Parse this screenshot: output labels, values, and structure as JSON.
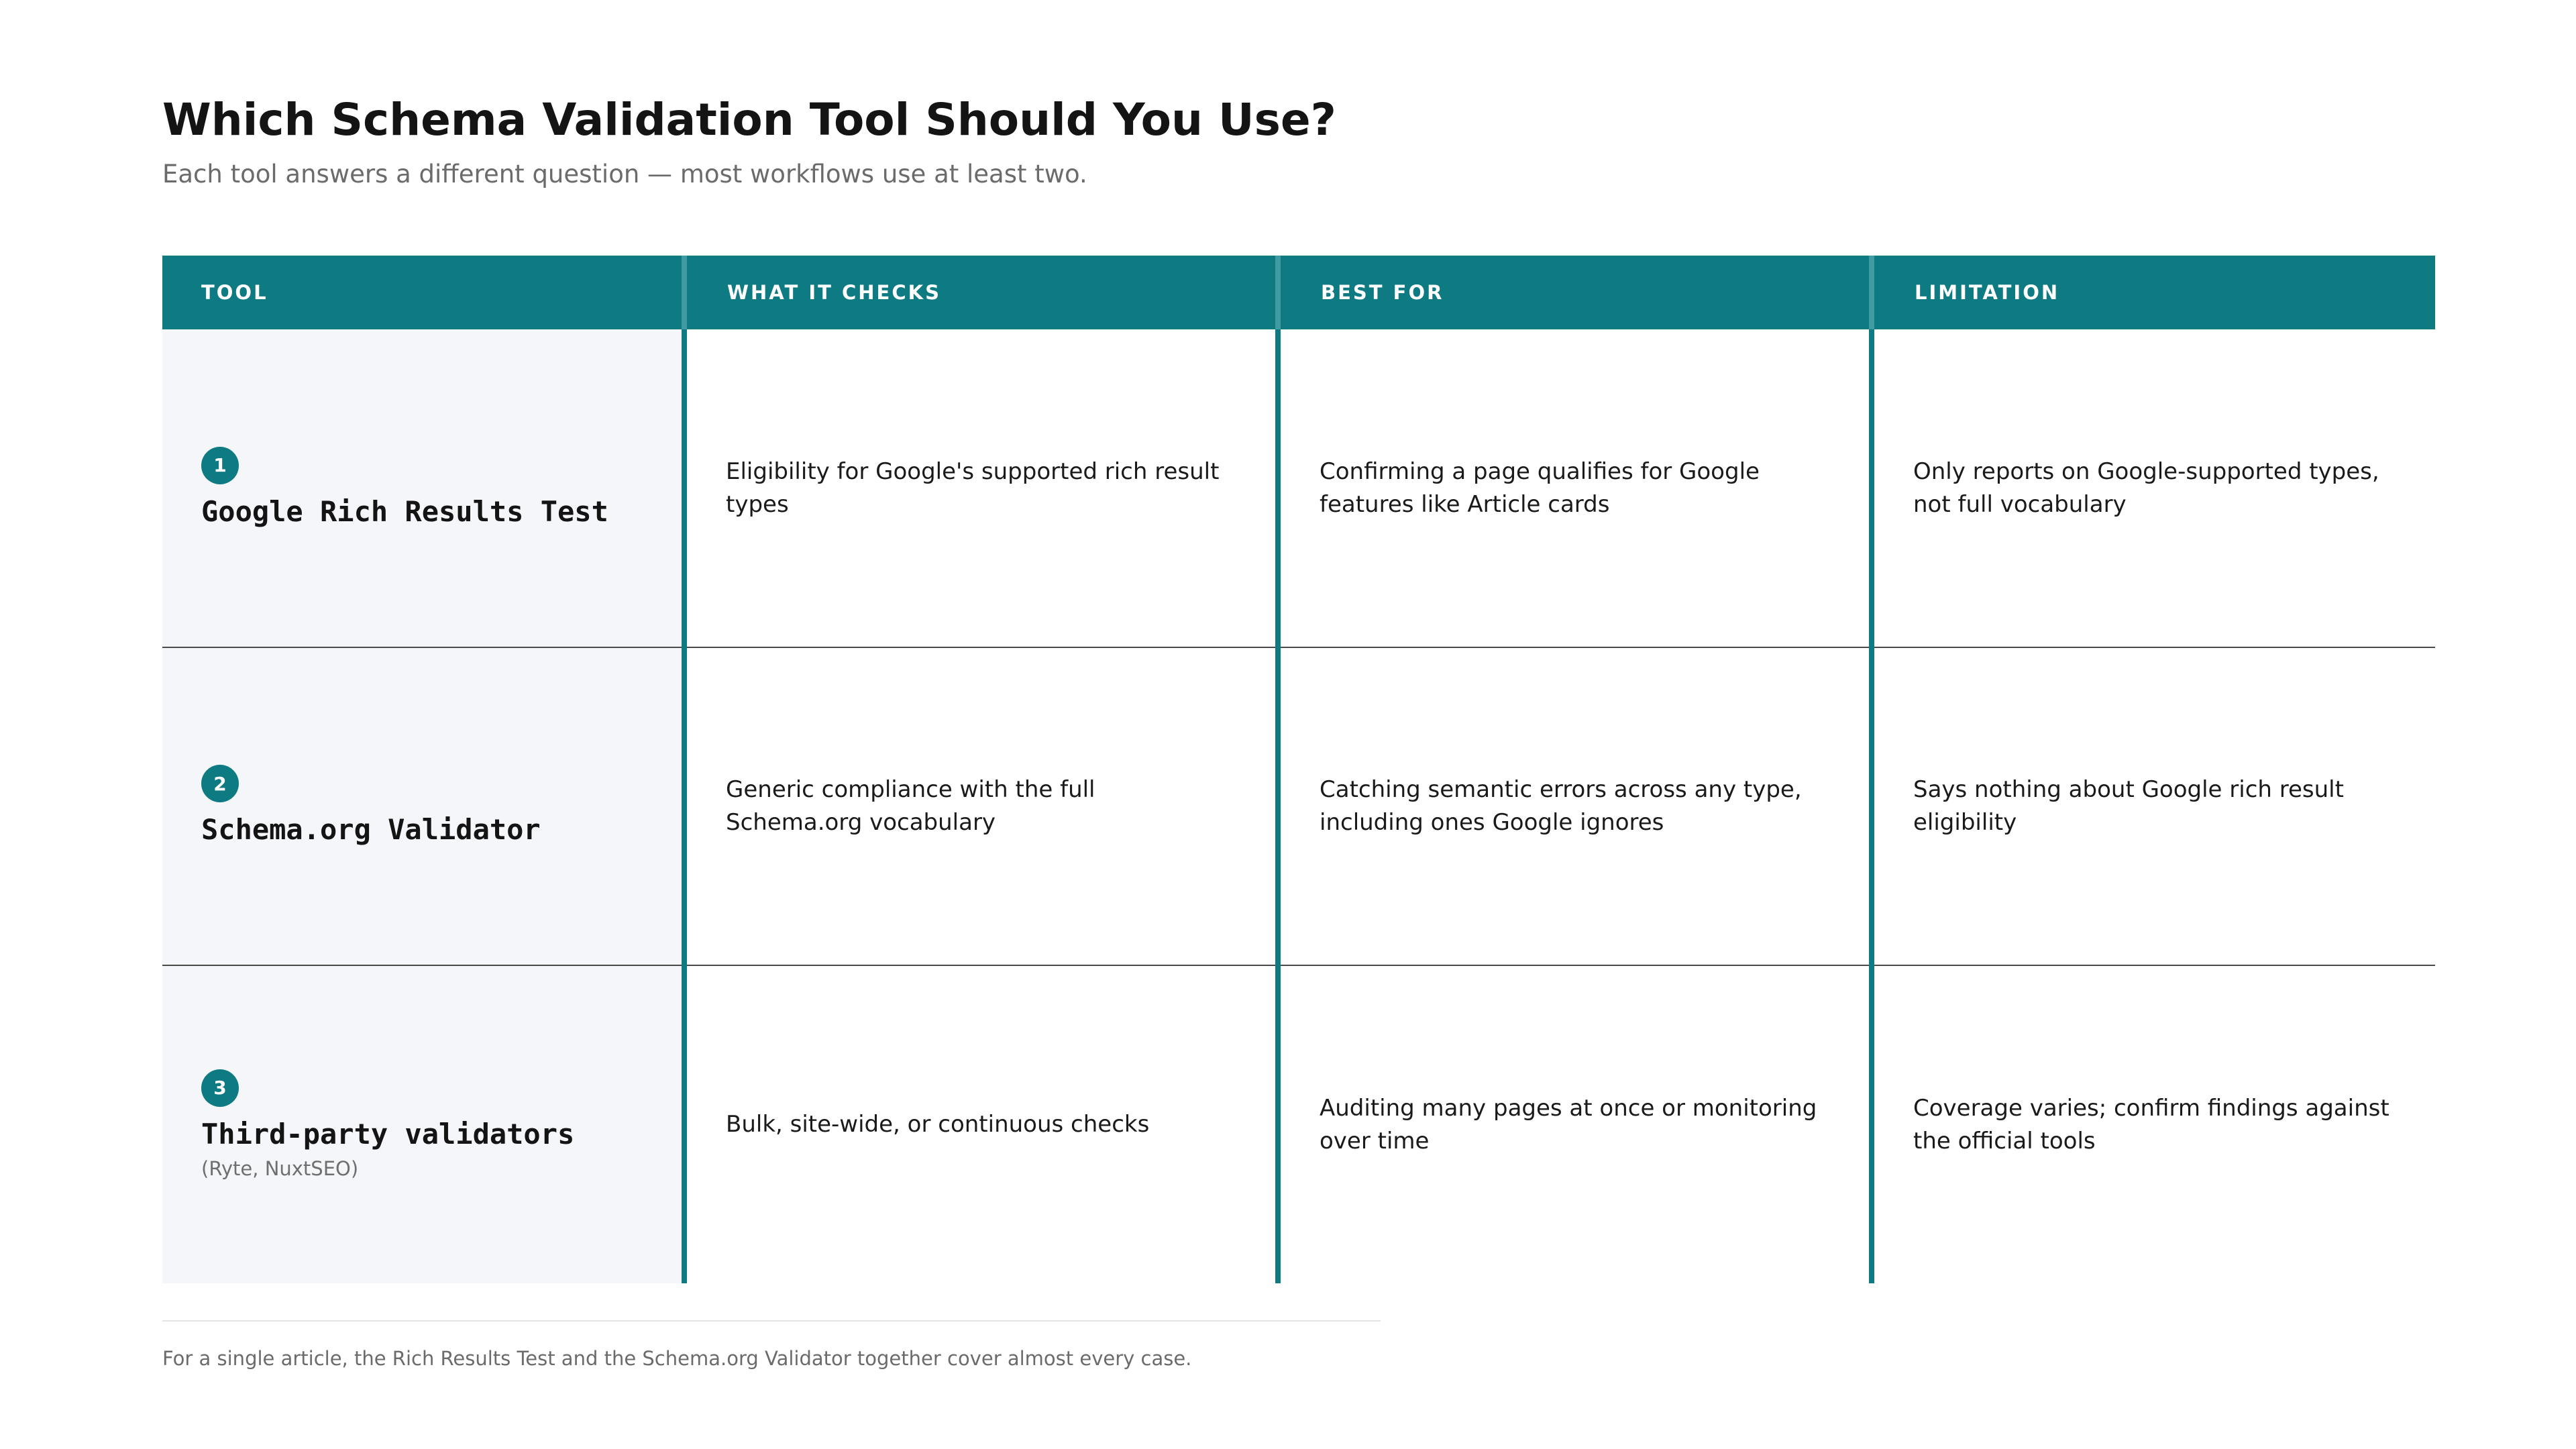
{
  "title": "Which Schema Validation Tool Should You Use?",
  "subtitle": "Each tool answers a different question — most workflows use at least two.",
  "colors": {
    "accent": "#0e7a82",
    "tool_column_bg": "#f4f6fa"
  },
  "table": {
    "headers": [
      "TOOL",
      "WHAT IT CHECKS",
      "BEST FOR",
      "LIMITATION"
    ],
    "rows": [
      {
        "number": "1",
        "tool": "Google Rich Results Test",
        "note": "",
        "checks": "Eligibility for Google's supported rich result types",
        "best_for": "Confirming a page qualifies for Google features like Article cards",
        "limitation": "Only reports on Google-supported types, not full vocabulary"
      },
      {
        "number": "2",
        "tool": "Schema.org Validator",
        "note": "",
        "checks": "Generic compliance with the full Schema.org vocabulary",
        "best_for": "Catching semantic errors across any type, including ones Google ignores",
        "limitation": "Says nothing about Google rich result eligibility"
      },
      {
        "number": "3",
        "tool": "Third-party validators",
        "note": "(Ryte, NuxtSEO)",
        "checks": "Bulk, site-wide, or continuous checks",
        "best_for": "Auditing many pages at once or monitoring over time",
        "limitation": "Coverage varies; confirm findings against the official tools"
      }
    ]
  },
  "footnote": "For a single article, the Rich Results Test and the Schema.org Validator together cover almost every case."
}
